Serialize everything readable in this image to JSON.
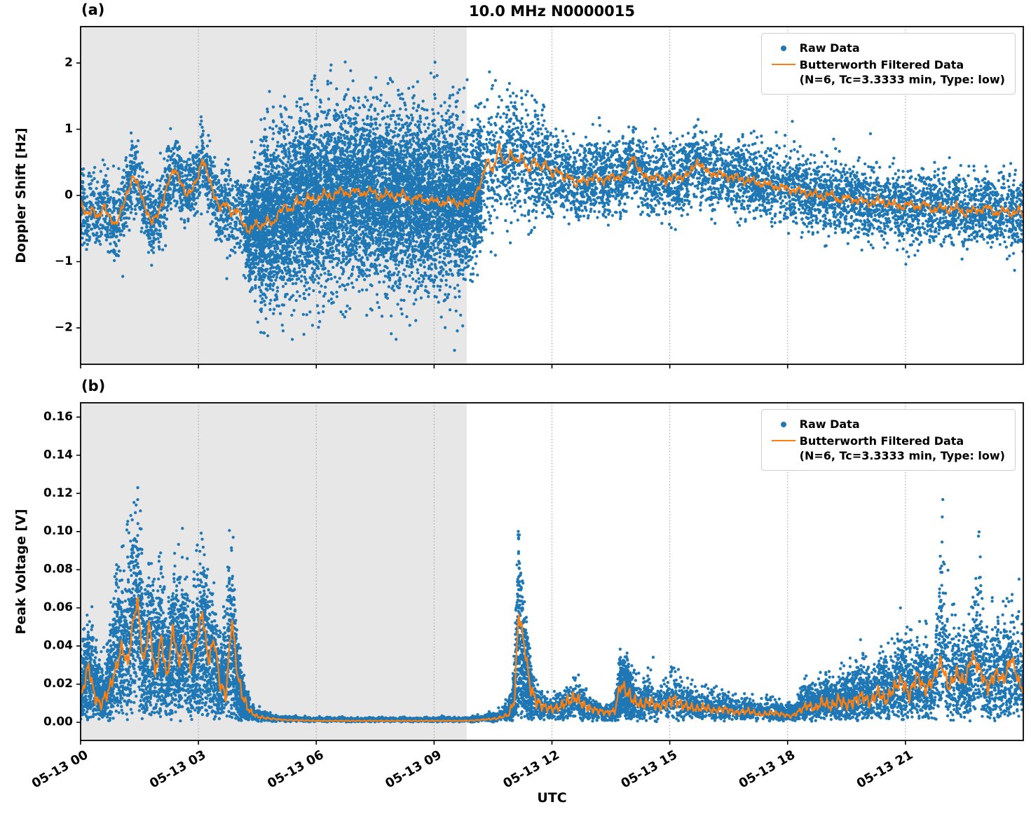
{
  "colors": {
    "raw": "#1f77b4",
    "filtered": "#ff7f0e",
    "shade": "#e7e7e7",
    "grid": "#9a9a9a",
    "axis": "#000000"
  },
  "legend": {
    "raw_label": "Raw Data",
    "filtered_label": "Butterworth Filtered Data",
    "filtered_params": "(N=6, Tc=3.3333 min, Type: low)"
  },
  "chart_data": [
    {
      "type": "scatter",
      "panel_label": "(a)",
      "title": "10.0 MHz N0000015",
      "ylabel": "Doppler Shift [Hz]",
      "ylim": [
        -2.55,
        2.55
      ],
      "yticks": [
        -2,
        -1,
        0,
        1,
        2
      ],
      "ytick_labels": [
        "−2",
        "−1",
        "0",
        "1",
        "2"
      ],
      "xlim": [
        0,
        24
      ],
      "xtick_values": [
        0,
        3,
        6,
        9,
        12,
        15,
        18,
        21
      ],
      "xtick_labels": [
        "05-13 00",
        "05-13 03",
        "05-13 06",
        "05-13 09",
        "05-13 12",
        "05-13 15",
        "05-13 18",
        "05-13 21"
      ],
      "show_xtick_labels": false,
      "shaded_region": {
        "x_from": 0,
        "x_to": 9.83
      },
      "line_jitter": 0.06,
      "line": {
        "x": [
          0.0,
          0.15,
          0.3,
          0.45,
          0.6,
          0.75,
          0.9,
          1.05,
          1.2,
          1.35,
          1.5,
          1.65,
          1.8,
          1.95,
          2.1,
          2.25,
          2.4,
          2.55,
          2.7,
          2.85,
          3.0,
          3.1,
          3.25,
          3.4,
          3.55,
          3.7,
          3.85,
          4.0,
          4.15,
          4.3,
          4.45,
          4.6,
          4.75,
          4.9,
          5.05,
          5.2,
          5.35,
          5.5,
          5.65,
          5.8,
          6.0,
          6.2,
          6.4,
          6.6,
          6.8,
          7.0,
          7.2,
          7.4,
          7.6,
          7.8,
          8.0,
          8.2,
          8.4,
          8.6,
          8.8,
          9.0,
          9.2,
          9.4,
          9.6,
          9.8,
          10.0,
          10.2,
          10.35,
          10.5,
          10.65,
          10.8,
          10.95,
          11.1,
          11.25,
          11.4,
          11.55,
          11.7,
          11.85,
          12.0,
          12.15,
          12.3,
          12.45,
          12.6,
          12.75,
          12.9,
          13.1,
          13.3,
          13.5,
          13.7,
          13.9,
          14.05,
          14.2,
          14.35,
          14.5,
          14.7,
          14.9,
          15.1,
          15.3,
          15.5,
          15.7,
          15.9,
          16.1,
          16.3,
          16.5,
          16.7,
          16.9,
          17.1,
          17.3,
          17.5,
          17.7,
          17.9,
          18.1,
          18.3,
          18.5,
          18.7,
          18.9,
          19.1,
          19.3,
          19.5,
          19.7,
          19.9,
          20.1,
          20.3,
          20.5,
          20.7,
          20.9,
          21.1,
          21.3,
          21.5,
          21.7,
          21.9,
          22.1,
          22.3,
          22.5,
          22.7,
          22.9,
          23.1,
          23.3,
          23.5,
          23.7,
          23.9,
          24.0
        ],
        "y": [
          -0.1,
          -0.3,
          -0.2,
          -0.35,
          -0.15,
          -0.35,
          -0.45,
          -0.2,
          0.05,
          0.3,
          0.1,
          -0.2,
          -0.4,
          -0.3,
          -0.1,
          0.25,
          0.4,
          0.2,
          0.0,
          0.1,
          0.3,
          0.55,
          0.3,
          0.0,
          -0.2,
          -0.1,
          -0.3,
          -0.2,
          -0.45,
          -0.55,
          -0.4,
          -0.5,
          -0.35,
          -0.45,
          -0.25,
          -0.15,
          -0.25,
          -0.05,
          -0.15,
          0.0,
          -0.1,
          0.05,
          -0.05,
          0.1,
          0.0,
          0.1,
          0.0,
          0.1,
          -0.05,
          0.05,
          -0.05,
          0.05,
          -0.1,
          0.0,
          -0.1,
          -0.05,
          -0.15,
          -0.05,
          -0.15,
          -0.1,
          -0.05,
          0.2,
          0.55,
          0.35,
          0.75,
          0.45,
          0.65,
          0.5,
          0.6,
          0.35,
          0.55,
          0.4,
          0.5,
          0.3,
          0.4,
          0.25,
          0.3,
          0.15,
          0.25,
          0.2,
          0.3,
          0.2,
          0.3,
          0.25,
          0.35,
          0.6,
          0.4,
          0.3,
          0.25,
          0.3,
          0.2,
          0.3,
          0.25,
          0.35,
          0.5,
          0.4,
          0.3,
          0.35,
          0.25,
          0.3,
          0.2,
          0.25,
          0.15,
          0.2,
          0.1,
          0.15,
          0.05,
          0.1,
          0.0,
          0.05,
          -0.05,
          0.05,
          -0.1,
          0.0,
          -0.1,
          -0.05,
          -0.15,
          -0.05,
          -0.15,
          -0.1,
          -0.2,
          -0.1,
          -0.2,
          -0.1,
          -0.25,
          -0.15,
          -0.25,
          -0.15,
          -0.3,
          -0.2,
          -0.25,
          -0.15,
          -0.3,
          -0.2,
          -0.3,
          -0.2,
          -0.3
        ]
      },
      "scatter_model": {
        "kind": "band",
        "n_points": 15000,
        "regions": [
          {
            "x0": 0,
            "x1": 24,
            "w": 0.62
          },
          {
            "x0": 4.2,
            "x1": 10.2,
            "w": 0.38
          }
        ],
        "spread_env": {
          "x": [
            0,
            4.2,
            4.7,
            9.6,
            10.1,
            11.8,
            12.2,
            24
          ],
          "v": [
            0.27,
            0.27,
            0.6,
            0.6,
            0.45,
            0.4,
            0.26,
            0.26
          ]
        },
        "tail_env": {
          "x": [
            0,
            4.2,
            4.7,
            9.6,
            10.1,
            11.8,
            12.2,
            24
          ],
          "v": [
            0.5,
            0.5,
            1.55,
            1.55,
            1.05,
            0.75,
            0.45,
            0.45
          ]
        },
        "tail_prob": 0.045
      }
    },
    {
      "type": "scatter",
      "panel_label": "(b)",
      "ylabel": "Peak Voltage [V]",
      "xlabel": "UTC",
      "ylim": [
        -0.0095,
        0.1675
      ],
      "yticks": [
        0.0,
        0.02,
        0.04,
        0.06,
        0.08,
        0.1,
        0.12,
        0.14,
        0.16
      ],
      "ytick_labels": [
        "0.00",
        "0.02",
        "0.04",
        "0.06",
        "0.08",
        "0.10",
        "0.12",
        "0.14",
        "0.16"
      ],
      "xlim": [
        0,
        24
      ],
      "xtick_values": [
        0,
        3,
        6,
        9,
        12,
        15,
        18,
        21
      ],
      "xtick_labels": [
        "05-13 00",
        "05-13 03",
        "05-13 06",
        "05-13 09",
        "05-13 12",
        "05-13 15",
        "05-13 18",
        "05-13 21"
      ],
      "show_xtick_labels": true,
      "shaded_region": {
        "x_from": 0,
        "x_to": 9.83
      },
      "line": {
        "x": [
          0.0,
          0.2,
          0.35,
          0.5,
          0.7,
          0.9,
          1.05,
          1.2,
          1.35,
          1.45,
          1.6,
          1.75,
          1.9,
          2.05,
          2.2,
          2.35,
          2.5,
          2.65,
          2.8,
          2.95,
          3.1,
          3.25,
          3.4,
          3.55,
          3.7,
          3.85,
          4.0,
          4.15,
          4.3,
          4.5,
          4.8,
          5.2,
          5.6,
          6.0,
          6.5,
          7.0,
          7.5,
          8.0,
          8.5,
          9.0,
          9.5,
          9.8,
          10.0,
          10.3,
          10.6,
          10.9,
          11.05,
          11.15,
          11.3,
          11.45,
          11.6,
          11.8,
          12.0,
          12.2,
          12.4,
          12.6,
          12.8,
          13.0,
          13.2,
          13.4,
          13.6,
          13.75,
          13.9,
          14.1,
          14.3,
          14.5,
          14.7,
          14.9,
          15.1,
          15.3,
          15.5,
          15.7,
          15.9,
          16.1,
          16.4,
          16.7,
          17.0,
          17.3,
          17.6,
          17.9,
          18.1,
          18.3,
          18.5,
          18.7,
          18.9,
          19.1,
          19.3,
          19.5,
          19.7,
          19.9,
          20.1,
          20.3,
          20.5,
          20.7,
          20.9,
          21.1,
          21.3,
          21.5,
          21.7,
          21.9,
          22.1,
          22.3,
          22.5,
          22.7,
          22.9,
          23.1,
          23.3,
          23.5,
          23.7,
          23.9,
          24.0
        ],
        "y": [
          0.012,
          0.03,
          0.014,
          0.009,
          0.016,
          0.028,
          0.04,
          0.03,
          0.055,
          0.064,
          0.03,
          0.052,
          0.024,
          0.045,
          0.022,
          0.05,
          0.03,
          0.045,
          0.028,
          0.042,
          0.058,
          0.032,
          0.044,
          0.02,
          0.014,
          0.055,
          0.024,
          0.012,
          0.006,
          0.003,
          0.002,
          0.0012,
          0.001,
          0.0008,
          0.0008,
          0.0008,
          0.0008,
          0.0008,
          0.0008,
          0.0008,
          0.0008,
          0.0008,
          0.001,
          0.0015,
          0.002,
          0.004,
          0.012,
          0.058,
          0.04,
          0.018,
          0.011,
          0.008,
          0.007,
          0.008,
          0.011,
          0.013,
          0.009,
          0.007,
          0.006,
          0.005,
          0.006,
          0.02,
          0.016,
          0.011,
          0.009,
          0.011,
          0.008,
          0.01,
          0.012,
          0.009,
          0.008,
          0.007,
          0.008,
          0.006,
          0.007,
          0.005,
          0.006,
          0.004,
          0.005,
          0.004,
          0.003,
          0.006,
          0.009,
          0.007,
          0.011,
          0.008,
          0.012,
          0.009,
          0.011,
          0.014,
          0.01,
          0.016,
          0.011,
          0.018,
          0.022,
          0.014,
          0.025,
          0.017,
          0.022,
          0.032,
          0.018,
          0.026,
          0.021,
          0.035,
          0.027,
          0.018,
          0.026,
          0.022,
          0.034,
          0.02,
          0.018
        ]
      },
      "scatter_model": {
        "kind": "floor",
        "n_points": 12000,
        "regions": [
          {
            "x0": 0,
            "x1": 24,
            "w": 0.58
          },
          {
            "x0": 0,
            "x1": 4.3,
            "w": 0.22
          },
          {
            "x0": 18,
            "x1": 24,
            "w": 0.12
          },
          {
            "x0": 10.9,
            "x1": 11.5,
            "w": 0.05
          },
          {
            "x0": 13.6,
            "x1": 14.1,
            "w": 0.03
          }
        ],
        "peak_env": {
          "x": [
            0.0,
            0.3,
            0.6,
            0.9,
            1.1,
            1.45,
            1.6,
            1.8,
            2.0,
            2.2,
            2.35,
            2.6,
            2.8,
            3.05,
            3.3,
            3.5,
            3.8,
            4.0,
            4.2,
            4.5,
            5.0,
            6.0,
            7.0,
            8.0,
            9.0,
            9.7,
            10.2,
            10.6,
            11.0,
            11.15,
            11.3,
            11.5,
            11.7,
            12.0,
            12.3,
            12.5,
            12.8,
            13.0,
            13.3,
            13.6,
            13.75,
            13.9,
            14.1,
            14.3,
            14.5,
            14.7,
            15.0,
            15.2,
            15.5,
            15.8,
            16.0,
            16.4,
            16.8,
            17.2,
            17.6,
            18.0,
            18.3,
            18.5,
            18.8,
            19.0,
            19.3,
            19.6,
            19.9,
            20.2,
            20.4,
            20.7,
            21.0,
            21.3,
            21.5,
            21.75,
            21.9,
            22.1,
            22.4,
            22.6,
            22.9,
            23.1,
            23.4,
            23.7,
            23.9,
            24.0
          ],
          "v": [
            0.05,
            0.065,
            0.03,
            0.11,
            0.1,
            0.16,
            0.09,
            0.095,
            0.105,
            0.07,
            0.09,
            0.098,
            0.08,
            0.1,
            0.08,
            0.05,
            0.11,
            0.05,
            0.02,
            0.008,
            0.003,
            0.002,
            0.002,
            0.002,
            0.002,
            0.002,
            0.004,
            0.006,
            0.02,
            0.123,
            0.06,
            0.03,
            0.02,
            0.015,
            0.02,
            0.028,
            0.022,
            0.015,
            0.012,
            0.012,
            0.045,
            0.04,
            0.03,
            0.025,
            0.03,
            0.025,
            0.035,
            0.03,
            0.025,
            0.022,
            0.02,
            0.022,
            0.018,
            0.015,
            0.015,
            0.012,
            0.02,
            0.028,
            0.025,
            0.035,
            0.03,
            0.04,
            0.045,
            0.04,
            0.05,
            0.045,
            0.065,
            0.05,
            0.06,
            0.05,
            0.135,
            0.07,
            0.065,
            0.05,
            0.115,
            0.06,
            0.07,
            0.075,
            0.06,
            0.055
          ]
        }
      }
    }
  ]
}
